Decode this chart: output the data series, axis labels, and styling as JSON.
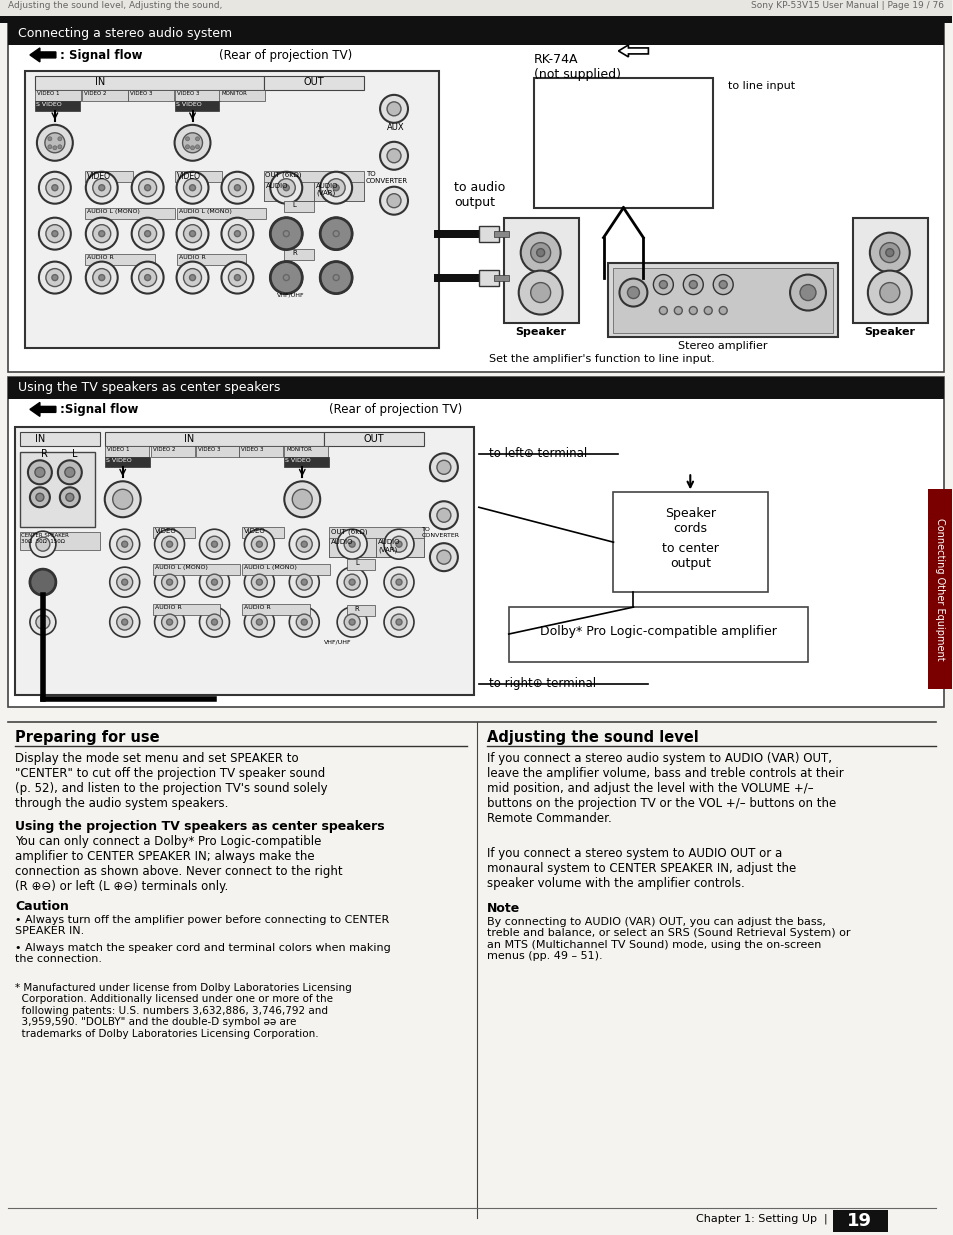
{
  "page_bg": "#f5f3ef",
  "section1_header": "Connecting a stereo audio system",
  "section2_header": "Using the TV speakers as center speakers",
  "rk74a_label": "RK-74A\n(not supplied)",
  "to_line_input": "to line input",
  "speaker_label": "Speaker",
  "stereo_amp_label": "Stereo amplifier",
  "set_amp_label": "Set the amplifier's function to line input.",
  "to_audio_output": "to audio\noutput",
  "to_left_terminal": "to left⊕ terminal",
  "speaker_cords": "Speaker\ncords",
  "to_center_output": "to center\noutput",
  "dolby_label": "Dolby* Pro Logic-compatible amplifier",
  "to_right_terminal": "to right⊕ terminal",
  "section3_title": "Preparing for use",
  "section3_body1": "Display the mode set menu and set SPEAKER to\n\"CENTER\" to cut off the projection TV speaker sound\n(p. 52), and listen to the projection TV's sound solely\nthrough the audio system speakers.",
  "section3_subtitle": "Using the projection TV speakers as center speakers",
  "section3_body2": "You can only connect a Dolby* Pro Logic-compatible\namplifier to CENTER SPEAKER IN; always make the\nconnection as shown above. Never connect to the right\n(R ⊕⊖) or left (L ⊕⊖) terminals only.",
  "caution_title": "Caution",
  "caution_bullet1": "Always turn off the amplifier power before connecting to CENTER\nSPEAKER IN.",
  "caution_bullet2": "Always match the speaker cord and terminal colors when making\nthe connection.",
  "dolby_note": "* Manufactured under license from Dolby Laboratories Licensing\n  Corporation. Additionally licensed under one or more of the\n  following patents: U.S. numbers 3,632,886, 3,746,792 and\n  3,959,590. \"DOLBY\" and the double-D symbol ǝǝ are\n  trademarks of Dolby Laboratories Licensing Corporation.",
  "section4_title": "Adjusting the sound level",
  "section4_body1": "If you connect a stereo audio system to AUDIO (VAR) OUT,\nleave the amplifier volume, bass and treble controls at their\nmid position, and adjust the level with the VOLUME +/–\nbuttons on the projection TV or the VOL +/– buttons on the\nRemote Commander.",
  "section4_body2": "If you connect a stereo system to AUDIO OUT or a\nmonaural system to CENTER SPEAKER IN, adjust the\nspeaker volume with the amplifier controls.",
  "note_title": "Note",
  "note_body": "By connecting to AUDIO (VAR) OUT, you can adjust the bass,\ntreble and balance, or select an SRS (Sound Retrieval System) or\nan MTS (Multichannel TV Sound) mode, using the on-screen\nmenus (pp. 49 – 51).",
  "chapter_text": "Chapter 1: Setting Up",
  "page_number": "19",
  "right_tab_text": "Connecting Other Equipment",
  "header_text_top": "Adjusting the sound level, Adjusting the sound,",
  "header_text_right": "Sony KP-53V15 User Manual | Page 19 / 76",
  "signal_flow": ": Signal flow",
  "rear_projection": "(Rear of projection TV)"
}
